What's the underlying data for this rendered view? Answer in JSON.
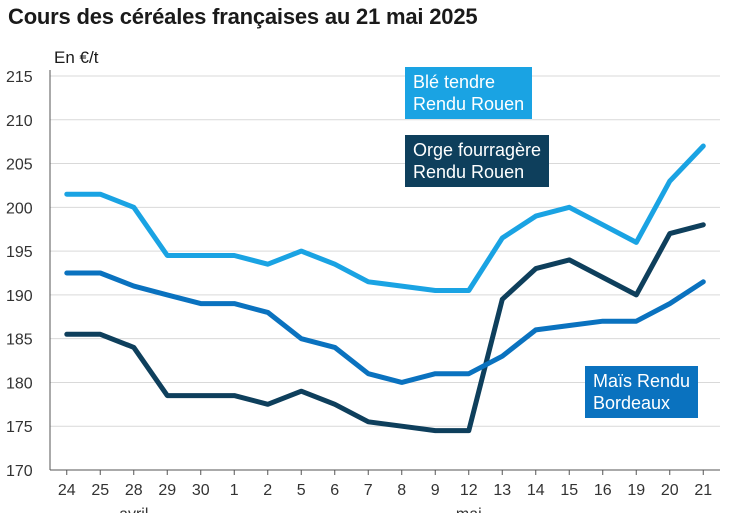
{
  "title": "Cours des céréales françaises au 21 mai 2025",
  "colors": {
    "ble": "#1aa3e3",
    "orge": "#0e3f5c",
    "mais": "#0a72bf",
    "grid": "#d9d9d9",
    "axis": "#555555"
  },
  "chart_data": {
    "type": "line",
    "title": "Cours des céréales françaises au 21 mai 2025",
    "ylabel": "En €/t",
    "ylim": [
      170,
      215
    ],
    "yticks": [
      170,
      175,
      180,
      185,
      190,
      195,
      200,
      205,
      210,
      215
    ],
    "grid": true,
    "x": [
      "24",
      "25",
      "28",
      "29",
      "30",
      "1",
      "2",
      "5",
      "6",
      "7",
      "8",
      "9",
      "12",
      "13",
      "14",
      "15",
      "16",
      "19",
      "20",
      "21"
    ],
    "month_labels": [
      {
        "text": "avril",
        "at_index": 2
      },
      {
        "text": "mai",
        "at_index": 12
      }
    ],
    "series": [
      {
        "name": "Blé tendre Rendu Rouen",
        "color_key": "ble",
        "values": [
          201.5,
          201.5,
          200,
          194.5,
          194.5,
          194.5,
          193.5,
          195,
          193.5,
          191.5,
          191,
          190.5,
          190.5,
          196.5,
          199,
          200,
          198,
          196,
          203,
          207
        ]
      },
      {
        "name": "Orge fourragère Rendu Rouen",
        "color_key": "orge",
        "values": [
          185.5,
          185.5,
          184,
          178.5,
          178.5,
          178.5,
          177.5,
          179,
          177.5,
          175.5,
          175,
          174.5,
          174.5,
          189.5,
          193,
          194,
          192,
          190,
          197,
          198
        ]
      },
      {
        "name": "Maïs Rendu Bordeaux",
        "color_key": "mais",
        "values": [
          192.5,
          192.5,
          191,
          190,
          189,
          189,
          188,
          185,
          184,
          181,
          180,
          181,
          181,
          183,
          186,
          186.5,
          187,
          187,
          189,
          191.5
        ]
      }
    ]
  },
  "legend_labels": {
    "ble": [
      "Blé tendre",
      "Rendu Rouen"
    ],
    "orge": [
      "Orge fourragère",
      "Rendu Rouen"
    ],
    "mais": [
      "Maïs Rendu",
      "Bordeaux"
    ]
  }
}
